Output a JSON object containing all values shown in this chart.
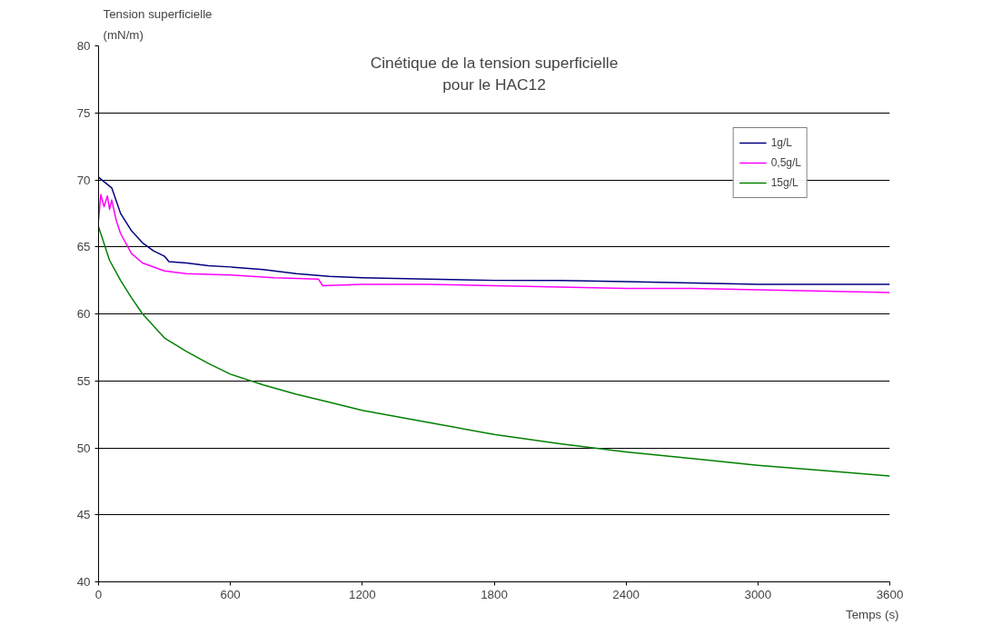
{
  "chart_data": {
    "type": "line",
    "title": "Cinétique de la tension superficielle\npour le HAC12",
    "xlabel": "Temps (s)",
    "ylabel": "Tension superficielle\n(mN/m)",
    "xlim": [
      0,
      3600
    ],
    "xticks": [
      0,
      600,
      1200,
      1800,
      2400,
      3000,
      3600
    ],
    "ylim": [
      40,
      80
    ],
    "yticks": [
      40,
      45,
      50,
      55,
      60,
      65,
      70,
      75,
      80
    ],
    "grid": "y",
    "legend": "top right",
    "marker": "none",
    "line_style": "solid",
    "series": [
      {
        "name": "1g/L",
        "color": "#000080",
        "x": [
          0,
          60,
          100,
          150,
          200,
          250,
          300,
          320,
          400,
          500,
          600,
          750,
          900,
          1050,
          1200,
          1500,
          1800,
          2100,
          2400,
          2700,
          3000,
          3300,
          3600
        ],
        "values": [
          70.2,
          69.4,
          67.5,
          66.2,
          65.3,
          64.7,
          64.3,
          63.9,
          63.8,
          63.6,
          63.5,
          63.3,
          63.0,
          62.8,
          62.7,
          62.6,
          62.5,
          62.5,
          62.4,
          62.3,
          62.2,
          62.2,
          62.2
        ]
      },
      {
        "name": "0,5g/L",
        "color": "#ff00ff",
        "x": [
          0,
          10,
          25,
          40,
          50,
          60,
          80,
          100,
          150,
          200,
          300,
          400,
          600,
          800,
          1000,
          1020,
          1200,
          1500,
          1800,
          2100,
          2400,
          2700,
          3000,
          3300,
          3600
        ],
        "values": [
          67.0,
          68.9,
          68.0,
          68.8,
          67.8,
          68.5,
          67.0,
          66.0,
          64.5,
          63.8,
          63.2,
          63.0,
          62.9,
          62.7,
          62.6,
          62.1,
          62.2,
          62.2,
          62.1,
          62.0,
          61.9,
          61.9,
          61.8,
          61.7,
          61.6
        ]
      },
      {
        "name": "15g/L",
        "color": "#008000",
        "x": [
          0,
          50,
          100,
          150,
          200,
          300,
          400,
          500,
          600,
          750,
          900,
          1050,
          1200,
          1500,
          1800,
          2100,
          2400,
          2700,
          3000,
          3300,
          3600
        ],
        "values": [
          66.5,
          64.0,
          62.5,
          61.2,
          60.0,
          58.2,
          57.2,
          56.3,
          55.5,
          54.7,
          54.0,
          53.4,
          52.8,
          51.9,
          51.0,
          50.3,
          49.7,
          49.2,
          48.7,
          48.3,
          47.9
        ]
      }
    ]
  }
}
